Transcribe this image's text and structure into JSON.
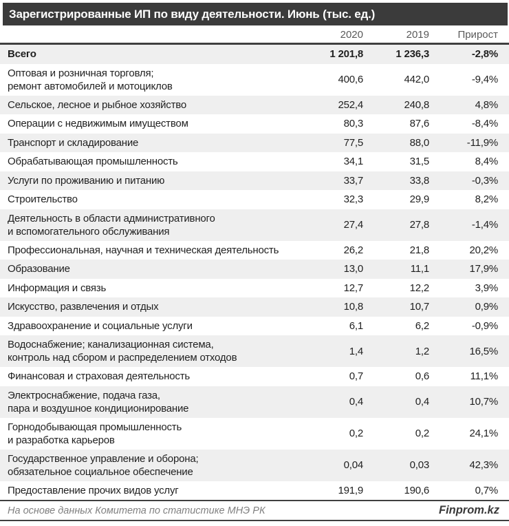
{
  "header": {
    "title": "Зарегистрированные ИП по виду деятельности. Июнь (тыс. ед.)"
  },
  "chart_data": {
    "type": "table",
    "title": "Зарегистрированные ИП по виду деятельности. Июнь (тыс. ед.)",
    "unit": "тыс. ед.",
    "columns": [
      "2020",
      "2019",
      "Прирост"
    ],
    "rows": [
      {
        "label": "Всего",
        "v2020": "1 201,8",
        "v2019": "1 236,3",
        "growth": "-2,8%",
        "bold": true
      },
      {
        "label": "Оптовая и розничная торговля;\nремонт автомобилей и мотоциклов",
        "v2020": "400,6",
        "v2019": "442,0",
        "growth": "-9,4%"
      },
      {
        "label": "Сельское, лесное и рыбное хозяйство",
        "v2020": "252,4",
        "v2019": "240,8",
        "growth": "4,8%"
      },
      {
        "label": "Операции с недвижимым имуществом",
        "v2020": "80,3",
        "v2019": "87,6",
        "growth": "-8,4%"
      },
      {
        "label": "Транспорт и складирование",
        "v2020": "77,5",
        "v2019": "88,0",
        "growth": "-11,9%"
      },
      {
        "label": "Обрабатывающая промышленность",
        "v2020": "34,1",
        "v2019": "31,5",
        "growth": "8,4%"
      },
      {
        "label": "Услуги по проживанию и питанию",
        "v2020": "33,7",
        "v2019": "33,8",
        "growth": "-0,3%"
      },
      {
        "label": "Строительство",
        "v2020": "32,3",
        "v2019": "29,9",
        "growth": "8,2%"
      },
      {
        "label": "Деятельность в области административного\nи вспомогательного обслуживания",
        "v2020": "27,4",
        "v2019": "27,8",
        "growth": "-1,4%"
      },
      {
        "label": "Профессиональная, научная и техническая деятельность",
        "v2020": "26,2",
        "v2019": "21,8",
        "growth": "20,2%"
      },
      {
        "label": "Образование",
        "v2020": "13,0",
        "v2019": "11,1",
        "growth": "17,9%"
      },
      {
        "label": "Информация и связь",
        "v2020": "12,7",
        "v2019": "12,2",
        "growth": "3,9%"
      },
      {
        "label": "Искусство, развлечения и отдых",
        "v2020": "10,8",
        "v2019": "10,7",
        "growth": "0,9%"
      },
      {
        "label": "Здравоохранение и социальные услуги",
        "v2020": "6,1",
        "v2019": "6,2",
        "growth": "-0,9%"
      },
      {
        "label": "Водоснабжение; канализационная система,\nконтроль над сбором и распределением отходов",
        "v2020": "1,4",
        "v2019": "1,2",
        "growth": "16,5%"
      },
      {
        "label": "Финансовая и страховая деятельность",
        "v2020": "0,7",
        "v2019": "0,6",
        "growth": "11,1%"
      },
      {
        "label": "Электроснабжение, подача газа,\nпара и воздушное  кондиционирование",
        "v2020": "0,4",
        "v2019": "0,4",
        "growth": "10,7%"
      },
      {
        "label": "Горнодобывающая промышленность\nи разработка карьеров",
        "v2020": "0,2",
        "v2019": "0,2",
        "growth": "24,1%"
      },
      {
        "label": "Государственное управление и оборона;\nобязательное социальное обеспечение",
        "v2020": "0,04",
        "v2019": "0,03",
        "growth": "42,3%"
      },
      {
        "label": "Предоставление прочих видов услуг",
        "v2020": "191,9",
        "v2019": "190,6",
        "growth": "0,7%"
      }
    ]
  },
  "footer": {
    "source": "На основе данных Комитета по статистике МНЭ РК",
    "brand": "Finprom.kz"
  },
  "colors": {
    "title_bar": "#3b3b3b",
    "row_stripe": "#efefef",
    "rule": "#3f3f3f",
    "header_text": "#595959",
    "body_text": "#1f1f1f",
    "source_text": "#808080"
  }
}
